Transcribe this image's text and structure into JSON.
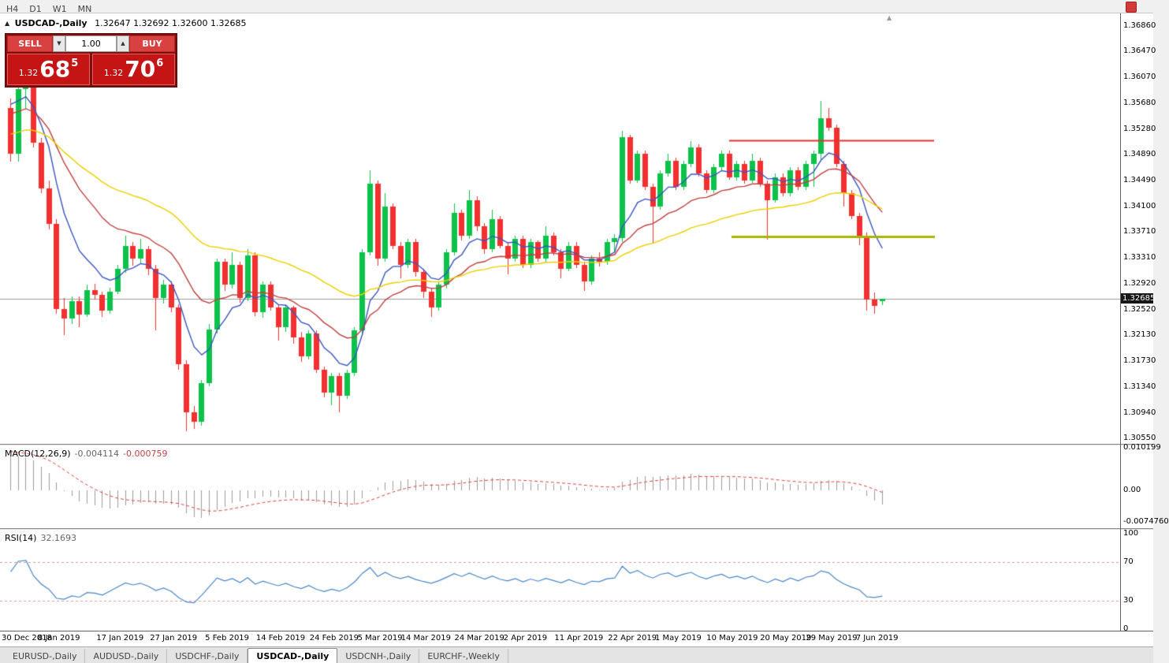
{
  "toolbar": {
    "periods": [
      "H4",
      "D1",
      "W1",
      "MN"
    ]
  },
  "icons": {
    "panel_toggle": "▲",
    "spin_up": "▲",
    "spin_down": "▼",
    "shift_marker": "▲"
  },
  "chart_header": {
    "title": "USDCAD-,Daily",
    "ohlc_text": "1.32647 1.32692 1.32600 1.32685"
  },
  "trade_panel": {
    "volume": "1.00",
    "sell": {
      "label": "SELL",
      "price_prefix": "1.32",
      "price_big": "68",
      "price_sup": "5"
    },
    "buy": {
      "label": "BUY",
      "price_prefix": "1.32",
      "price_big": "70",
      "price_sup": "6"
    }
  },
  "tabs": [
    {
      "label": "EURUSD-,Daily",
      "active": false
    },
    {
      "label": "AUDUSD-,Daily",
      "active": false
    },
    {
      "label": "USDCHF-,Daily",
      "active": false
    },
    {
      "label": "USDCAD-,Daily",
      "active": true
    },
    {
      "label": "USDCNH-,Daily",
      "active": false
    },
    {
      "label": "EURCHF-,Weekly",
      "active": false
    }
  ],
  "chart_data": {
    "type": "candlestick",
    "symbol": "USDCAD",
    "timeframe": "Daily",
    "current_price": "1.32685",
    "price_range": {
      "top": 1.37053,
      "bottom": 1.30467
    },
    "y_axis_labels": [
      "1.36860",
      "1.36470",
      "1.36070",
      "1.35680",
      "1.35280",
      "1.34890",
      "1.34490",
      "1.34100",
      "1.33710",
      "1.33310",
      "1.32920",
      "1.32520",
      "1.32130",
      "1.31730",
      "1.31340",
      "1.30940",
      "1.30550"
    ],
    "x_ticks": [
      {
        "i": 0,
        "label": "30 Dec 2018"
      },
      {
        "i": 6,
        "label": "8 Jan 2019"
      },
      {
        "i": 14,
        "label": "17 Jan 2019"
      },
      {
        "i": 21,
        "label": "27 Jan 2019"
      },
      {
        "i": 28,
        "label": "5 Feb 2019"
      },
      {
        "i": 35,
        "label": "14 Feb 2019"
      },
      {
        "i": 42,
        "label": "24 Feb 2019"
      },
      {
        "i": 48,
        "label": "5 Mar 2019"
      },
      {
        "i": 54,
        "label": "14 Mar 2019"
      },
      {
        "i": 61,
        "label": "24 Mar 2019"
      },
      {
        "i": 67,
        "label": "2 Apr 2019"
      },
      {
        "i": 74,
        "label": "11 Apr 2019"
      },
      {
        "i": 81,
        "label": "22 Apr 2019"
      },
      {
        "i": 87,
        "label": "1 May 2019"
      },
      {
        "i": 94,
        "label": "10 May 2019"
      },
      {
        "i": 101,
        "label": "20 May 2019"
      },
      {
        "i": 107,
        "label": "29 May 2019"
      },
      {
        "i": 113,
        "label": "7 Jun 2019"
      }
    ],
    "candles": [
      [
        1.356,
        1.3575,
        1.3478,
        1.349
      ],
      [
        1.349,
        1.36,
        1.3478,
        1.359
      ],
      [
        1.359,
        1.3608,
        1.356,
        1.36
      ],
      [
        1.36,
        1.3605,
        1.35,
        1.3508
      ],
      [
        1.3508,
        1.3515,
        1.343,
        1.3437
      ],
      [
        1.3437,
        1.345,
        1.3375,
        1.3383
      ],
      [
        1.3383,
        1.339,
        1.3245,
        1.3253
      ],
      [
        1.3253,
        1.327,
        1.3213,
        1.3238
      ],
      [
        1.3238,
        1.3272,
        1.323,
        1.3265
      ],
      [
        1.3265,
        1.3272,
        1.3225,
        1.3245
      ],
      [
        1.3245,
        1.329,
        1.324,
        1.3282
      ],
      [
        1.3282,
        1.3292,
        1.3268,
        1.3275
      ],
      [
        1.3275,
        1.328,
        1.3242,
        1.325
      ],
      [
        1.325,
        1.3285,
        1.3245,
        1.328
      ],
      [
        1.328,
        1.332,
        1.3275,
        1.3315
      ],
      [
        1.3315,
        1.3365,
        1.3308,
        1.335
      ],
      [
        1.335,
        1.3356,
        1.332,
        1.333
      ],
      [
        1.333,
        1.336,
        1.3322,
        1.3345
      ],
      [
        1.3345,
        1.335,
        1.3305,
        1.3315
      ],
      [
        1.3315,
        1.332,
        1.322,
        1.327
      ],
      [
        1.327,
        1.3298,
        1.3262,
        1.329
      ],
      [
        1.329,
        1.3295,
        1.3248,
        1.3255
      ],
      [
        1.3255,
        1.326,
        1.316,
        1.3168
      ],
      [
        1.3168,
        1.3175,
        1.3067,
        1.3095
      ],
      [
        1.3095,
        1.3105,
        1.307,
        1.308
      ],
      [
        1.308,
        1.3145,
        1.3075,
        1.314
      ],
      [
        1.314,
        1.323,
        1.3135,
        1.3222
      ],
      [
        1.3222,
        1.333,
        1.3215,
        1.3325
      ],
      [
        1.3325,
        1.333,
        1.328,
        1.329
      ],
      [
        1.329,
        1.334,
        1.3285,
        1.332
      ],
      [
        1.332,
        1.3325,
        1.3262,
        1.327
      ],
      [
        1.327,
        1.3345,
        1.3265,
        1.3335
      ],
      [
        1.3335,
        1.334,
        1.3242,
        1.3248
      ],
      [
        1.3248,
        1.3295,
        1.324,
        1.329
      ],
      [
        1.329,
        1.3295,
        1.325,
        1.3255
      ],
      [
        1.3255,
        1.326,
        1.3205,
        1.3225
      ],
      [
        1.3225,
        1.326,
        1.3218,
        1.3255
      ],
      [
        1.3255,
        1.3258,
        1.32,
        1.321
      ],
      [
        1.321,
        1.3218,
        1.3172,
        1.318
      ],
      [
        1.318,
        1.322,
        1.3175,
        1.3215
      ],
      [
        1.3215,
        1.322,
        1.3155,
        1.316
      ],
      [
        1.316,
        1.3165,
        1.3118,
        1.3125
      ],
      [
        1.3125,
        1.3155,
        1.3105,
        1.315
      ],
      [
        1.315,
        1.3155,
        1.3095,
        1.312
      ],
      [
        1.312,
        1.316,
        1.3115,
        1.3155
      ],
      [
        1.3155,
        1.3225,
        1.315,
        1.322
      ],
      [
        1.322,
        1.3345,
        1.3215,
        1.334
      ],
      [
        1.334,
        1.3465,
        1.3335,
        1.3445
      ],
      [
        1.3445,
        1.345,
        1.332,
        1.333
      ],
      [
        1.333,
        1.343,
        1.3325,
        1.341
      ],
      [
        1.341,
        1.3415,
        1.3345,
        1.335
      ],
      [
        1.335,
        1.3355,
        1.33,
        1.332
      ],
      [
        1.332,
        1.336,
        1.3315,
        1.3355
      ],
      [
        1.3355,
        1.336,
        1.3302,
        1.331
      ],
      [
        1.331,
        1.3315,
        1.327,
        1.328
      ],
      [
        1.328,
        1.3285,
        1.324,
        1.3255
      ],
      [
        1.3255,
        1.3295,
        1.325,
        1.329
      ],
      [
        1.329,
        1.3345,
        1.3285,
        1.334
      ],
      [
        1.334,
        1.3415,
        1.3335,
        1.34
      ],
      [
        1.34,
        1.3405,
        1.3358,
        1.3365
      ],
      [
        1.3365,
        1.3435,
        1.336,
        1.342
      ],
      [
        1.342,
        1.3425,
        1.3372,
        1.338
      ],
      [
        1.338,
        1.3385,
        1.3338,
        1.3345
      ],
      [
        1.3345,
        1.3405,
        1.334,
        1.339
      ],
      [
        1.339,
        1.3395,
        1.3345,
        1.335
      ],
      [
        1.335,
        1.3355,
        1.3305,
        1.333
      ],
      [
        1.333,
        1.3365,
        1.3325,
        1.336
      ],
      [
        1.336,
        1.3365,
        1.3315,
        1.332
      ],
      [
        1.332,
        1.336,
        1.3315,
        1.3355
      ],
      [
        1.3355,
        1.3358,
        1.3325,
        1.333
      ],
      [
        1.333,
        1.338,
        1.3325,
        1.3365
      ],
      [
        1.3365,
        1.337,
        1.3335,
        1.334
      ],
      [
        1.334,
        1.3345,
        1.33,
        1.3315
      ],
      [
        1.3315,
        1.3355,
        1.331,
        1.335
      ],
      [
        1.335,
        1.3355,
        1.3315,
        1.332
      ],
      [
        1.332,
        1.3325,
        1.328,
        1.3295
      ],
      [
        1.3295,
        1.3335,
        1.329,
        1.333
      ],
      [
        1.333,
        1.334,
        1.3318,
        1.3325
      ],
      [
        1.3325,
        1.336,
        1.332,
        1.3355
      ],
      [
        1.3355,
        1.3368,
        1.334,
        1.3362
      ],
      [
        1.3362,
        1.3525,
        1.3355,
        1.3516
      ],
      [
        1.3516,
        1.352,
        1.3445,
        1.345
      ],
      [
        1.345,
        1.3495,
        1.3445,
        1.349
      ],
      [
        1.349,
        1.3495,
        1.3435,
        1.344
      ],
      [
        1.344,
        1.3445,
        1.3355,
        1.341
      ],
      [
        1.341,
        1.3465,
        1.3405,
        1.346
      ],
      [
        1.346,
        1.349,
        1.3455,
        1.348
      ],
      [
        1.348,
        1.3485,
        1.3435,
        1.344
      ],
      [
        1.344,
        1.348,
        1.3435,
        1.3475
      ],
      [
        1.3475,
        1.351,
        1.347,
        1.35
      ],
      [
        1.35,
        1.3505,
        1.3455,
        1.346
      ],
      [
        1.346,
        1.3465,
        1.343,
        1.3435
      ],
      [
        1.3435,
        1.3475,
        1.343,
        1.347
      ],
      [
        1.347,
        1.3495,
        1.3465,
        1.349
      ],
      [
        1.349,
        1.3495,
        1.345,
        1.3455
      ],
      [
        1.3455,
        1.348,
        1.345,
        1.3475
      ],
      [
        1.3475,
        1.348,
        1.3445,
        1.345
      ],
      [
        1.345,
        1.349,
        1.3445,
        1.348
      ],
      [
        1.348,
        1.3485,
        1.344,
        1.3445
      ],
      [
        1.3445,
        1.345,
        1.336,
        1.342
      ],
      [
        1.342,
        1.346,
        1.3415,
        1.3455
      ],
      [
        1.3455,
        1.346,
        1.3425,
        1.343
      ],
      [
        1.343,
        1.347,
        1.3425,
        1.3465
      ],
      [
        1.3465,
        1.347,
        1.3435,
        1.344
      ],
      [
        1.344,
        1.348,
        1.3435,
        1.3475
      ],
      [
        1.3475,
        1.3495,
        1.344,
        1.349
      ],
      [
        1.349,
        1.3572,
        1.348,
        1.3545
      ],
      [
        1.3545,
        1.356,
        1.3525,
        1.353
      ],
      [
        1.353,
        1.3535,
        1.347,
        1.3475
      ],
      [
        1.3475,
        1.348,
        1.341,
        1.343
      ],
      [
        1.343,
        1.3435,
        1.339,
        1.3395
      ],
      [
        1.3395,
        1.34,
        1.335,
        1.3365
      ],
      [
        1.3365,
        1.337,
        1.325,
        1.3268
      ],
      [
        1.3268,
        1.3278,
        1.3245,
        1.3258
      ],
      [
        1.32647,
        1.32692,
        1.326,
        1.32685
      ]
    ],
    "moving_averages": [
      {
        "name": "fast-ma",
        "period": 8,
        "color": "#3b55c0",
        "seed": 1.3588
      },
      {
        "name": "medium-ma",
        "period": 20,
        "color": "#c04040",
        "seed": 1.3558
      },
      {
        "name": "slow-ma",
        "period": 45,
        "color": "#ecd000",
        "seed": 1.3522
      }
    ],
    "hlines": [
      {
        "name": "resistance-line",
        "price": 1.3511,
        "color": "#e03232",
        "width": 2
      },
      {
        "name": "support-line",
        "price": 1.3364,
        "color": "#a8b400",
        "width": 3
      }
    ],
    "macd": {
      "label": "MACD(12,26,9)",
      "value": "-0.004114",
      "signal_value": "-0.000759",
      "params": [
        12,
        26,
        9
      ],
      "axis_labels": [
        "0.010199",
        "0.00",
        "-0.0074760"
      ],
      "range": {
        "max": 0.01058,
        "min": -0.00907
      }
    },
    "rsi": {
      "label": "RSI(14)",
      "value": "32.1693",
      "period": 14,
      "levels": [
        70,
        30
      ],
      "axis_labels": [
        "100",
        "70",
        "30",
        "0"
      ]
    },
    "colors": {
      "up": "#0cc24a",
      "down": "#f23030",
      "bid_line": "#9a9a9a",
      "macd_bar": "#9b9b9b",
      "macd_signal": "#e04040",
      "rsi_line": "#4a86c8",
      "rsi_level": "#d89898",
      "badge_bg": "#161616"
    }
  }
}
